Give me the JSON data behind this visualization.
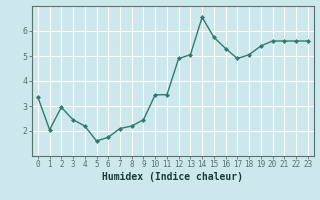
{
  "x": [
    0,
    1,
    2,
    3,
    4,
    5,
    6,
    7,
    8,
    9,
    10,
    11,
    12,
    13,
    14,
    15,
    16,
    17,
    18,
    19,
    20,
    21,
    22,
    23
  ],
  "y": [
    3.35,
    2.05,
    2.95,
    2.45,
    2.2,
    1.6,
    1.75,
    2.1,
    2.2,
    2.45,
    3.45,
    3.45,
    4.9,
    5.05,
    6.55,
    5.75,
    5.3,
    4.9,
    5.05,
    5.4,
    5.6,
    5.6,
    5.6,
    5.6
  ],
  "xlabel": "Humidex (Indice chaleur)",
  "xlim": [
    -0.5,
    23.5
  ],
  "ylim": [
    1.0,
    7.0
  ],
  "yticks": [
    2,
    3,
    4,
    5,
    6
  ],
  "xticks": [
    0,
    1,
    2,
    3,
    4,
    5,
    6,
    7,
    8,
    9,
    10,
    11,
    12,
    13,
    14,
    15,
    16,
    17,
    18,
    19,
    20,
    21,
    22,
    23
  ],
  "line_color": "#2e7b6e",
  "marker": "D",
  "marker_size": 2.0,
  "bg_color": "#cce8ec",
  "grid_color": "#ffffff",
  "axis_color": "#5a7070",
  "tick_label_color": "#2e5050",
  "xlabel_color": "#1a3a3a",
  "xlabel_fontsize": 7.0,
  "tick_fontsize": 5.5,
  "linewidth": 1.0
}
